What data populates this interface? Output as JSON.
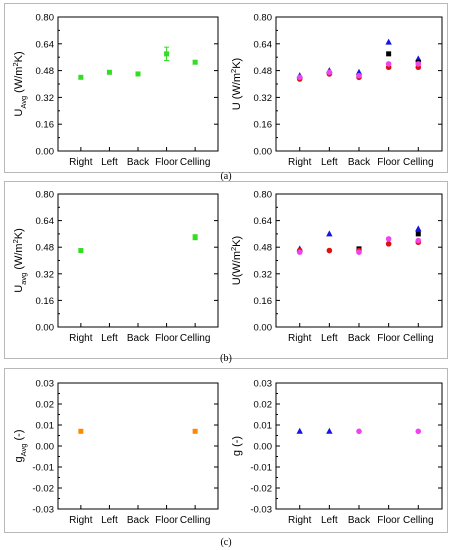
{
  "panels": [
    {
      "label": "(a)"
    },
    {
      "label": "(b)"
    },
    {
      "label": "(c)"
    }
  ],
  "chart_data": [
    {
      "id": "a-left",
      "type": "scatter",
      "panel": "(a)",
      "ylabel_main": "U",
      "ylabel_sub": "Avg",
      "ylabel_unit_pre": " (W/m",
      "ylabel_unit_sup": "2",
      "ylabel_unit_post": "K)",
      "categories": [
        "Right",
        "Left",
        "Back",
        "Floor",
        "Celling"
      ],
      "ylim": [
        0.0,
        0.8
      ],
      "yticks": [
        "0.00",
        "0.16",
        "0.32",
        "0.48",
        "0.64",
        "0.80"
      ],
      "series": [
        {
          "marker": "square",
          "color": "#33dd22",
          "values": [
            0.44,
            0.47,
            0.46,
            0.58,
            0.53
          ],
          "errors": [
            0.0,
            0.0,
            0.0,
            0.04,
            0.01
          ]
        }
      ]
    },
    {
      "id": "a-right",
      "type": "scatter",
      "panel": "(a)",
      "ylabel_main": "U",
      "ylabel_sub": "",
      "ylabel_unit_pre": " (W/m",
      "ylabel_unit_sup": "2",
      "ylabel_unit_post": "K)",
      "categories": [
        "Right",
        "Left",
        "Back",
        "Floor",
        "Celling"
      ],
      "ylim": [
        0.0,
        0.8
      ],
      "yticks": [
        "0.00",
        "0.16",
        "0.32",
        "0.48",
        "0.64",
        "0.80"
      ],
      "series": [
        {
          "marker": "triangle",
          "color": "#1515dd",
          "values": [
            0.45,
            0.48,
            0.47,
            0.65,
            0.55
          ]
        },
        {
          "marker": "square",
          "color": "#000000",
          "values": [
            null,
            null,
            null,
            0.58,
            0.53
          ]
        },
        {
          "marker": "circle",
          "color": "#dd1111",
          "values": [
            0.43,
            0.46,
            0.44,
            0.5,
            0.5
          ]
        },
        {
          "marker": "circle",
          "color": "#ee44ee",
          "values": [
            0.44,
            0.47,
            0.45,
            0.52,
            0.52
          ]
        }
      ]
    },
    {
      "id": "b-left",
      "type": "scatter",
      "panel": "(b)",
      "ylabel_main": "U",
      "ylabel_sub": "avg",
      "ylabel_unit_pre": " (W/m",
      "ylabel_unit_sup": "2",
      "ylabel_unit_post": "K)",
      "categories": [
        "Right",
        "Left",
        "Back",
        "Floor",
        "Celling"
      ],
      "ylim": [
        0.0,
        0.8
      ],
      "yticks": [
        "0.00",
        "0.16",
        "0.32",
        "0.48",
        "0.64",
        "0.80"
      ],
      "series": [
        {
          "marker": "square",
          "color": "#33dd22",
          "values": [
            0.46,
            null,
            null,
            null,
            0.54
          ],
          "errors": [
            0.0,
            null,
            null,
            null,
            0.015
          ]
        }
      ]
    },
    {
      "id": "b-right",
      "type": "scatter",
      "panel": "(b)",
      "ylabel_main": "U",
      "ylabel_sub": "",
      "ylabel_unit_pre": "(W/m",
      "ylabel_unit_sup": "2",
      "ylabel_unit_post": "K)",
      "categories": [
        "Right",
        "Left",
        "Back",
        "Floor",
        "Celling"
      ],
      "ylim": [
        0.0,
        0.8
      ],
      "yticks": [
        "0.00",
        "0.16",
        "0.32",
        "0.48",
        "0.64",
        "0.80"
      ],
      "series": [
        {
          "marker": "triangle",
          "color": "#1515dd",
          "values": [
            0.47,
            0.56,
            null,
            null,
            0.59
          ]
        },
        {
          "marker": "square",
          "color": "#000000",
          "values": [
            null,
            null,
            0.47,
            null,
            0.56
          ]
        },
        {
          "marker": "circle",
          "color": "#dd1111",
          "values": [
            0.46,
            0.46,
            0.46,
            0.5,
            0.51
          ]
        },
        {
          "marker": "circle",
          "color": "#ee44ee",
          "values": [
            0.45,
            null,
            0.45,
            0.53,
            0.52
          ]
        }
      ]
    },
    {
      "id": "c-left",
      "type": "scatter",
      "panel": "(c)",
      "ylabel_main": "g",
      "ylabel_sub": "Avg",
      "ylabel_unit_pre": " (-)",
      "ylabel_unit_sup": "",
      "ylabel_unit_post": "",
      "categories": [
        "Right",
        "Left",
        "Back",
        "Floor",
        "Celling"
      ],
      "ylim": [
        -0.03,
        0.03
      ],
      "yticks": [
        "-0.03",
        "-0.02",
        "-0.01",
        "0.00",
        "0.01",
        "0.02",
        "0.03"
      ],
      "series": [
        {
          "marker": "square",
          "color": "#ff8800",
          "values": [
            0.007,
            null,
            null,
            null,
            0.007
          ]
        }
      ]
    },
    {
      "id": "c-right",
      "type": "scatter",
      "panel": "(c)",
      "ylabel_main": "g",
      "ylabel_sub": "",
      "ylabel_unit_pre": " (-)",
      "ylabel_unit_sup": "",
      "ylabel_unit_post": "",
      "categories": [
        "Right",
        "Left",
        "Back",
        "Floor",
        "Celling"
      ],
      "ylim": [
        -0.03,
        0.03
      ],
      "yticks": [
        "-0.03",
        "-0.02",
        "-0.01",
        "0.00",
        "0.01",
        "0.02",
        "0.03"
      ],
      "series": [
        {
          "marker": "triangle",
          "color": "#1515dd",
          "values": [
            0.007,
            0.007,
            null,
            null,
            null
          ]
        },
        {
          "marker": "circle",
          "color": "#ee44ee",
          "values": [
            null,
            null,
            0.007,
            null,
            0.007
          ]
        }
      ]
    }
  ]
}
